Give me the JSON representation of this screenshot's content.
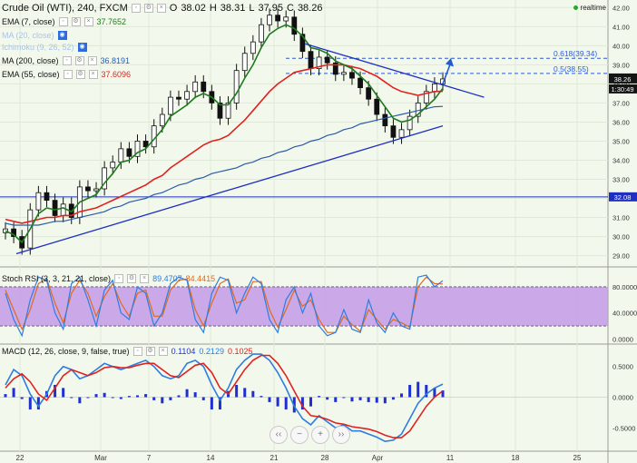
{
  "header": {
    "symbol": "Crude Oil (WTI), 240, FXCM",
    "ohlc": {
      "o_label": "O",
      "o": "38.02",
      "h_label": "H",
      "h": "38.31",
      "l_label": "L",
      "l": "37.95",
      "c_label": "C",
      "c": "38.26"
    },
    "realtime": "realtime"
  },
  "legend": {
    "ema7": {
      "label": "EMA (7, close)",
      "value": "37.7652"
    },
    "ma_faded1": {
      "label": "MA (20, close)"
    },
    "ma_faded2": {
      "label": "Ichimoku (9, 26, 52)"
    },
    "ma200": {
      "label": "MA (200, close)",
      "value": "36.8191"
    },
    "ema55": {
      "label": "EMA (55, close)",
      "value": "37.6096"
    },
    "stoch": {
      "label": "Stoch RSI (3, 3, 21, 21, close)",
      "k": "89.4707",
      "d": "84.4415"
    },
    "macd": {
      "label": "MACD (12, 26, close, 9, false, true)",
      "hist": "0.1104",
      "macd": "0.2129",
      "signal": "0.1025"
    }
  },
  "colors": {
    "price_up": "#1a1a1a",
    "ema7": "#1f7a1f",
    "ema55": "#e0221f",
    "ma200": "#2b5aa8",
    "trend": "#1f2fbf",
    "stoch_band": "#c49be8",
    "macd_line": "#2e7de0",
    "signal_line": "#e0221f",
    "hist": "#1f2fd0"
  },
  "chart_data": [
    {
      "type": "line",
      "panel": "price",
      "title": "Crude Oil (WTI), 240, FXCM",
      "x_ticks": [
        "22",
        "Mar",
        "7",
        "14",
        "21",
        "28",
        "Apr",
        "11",
        "18",
        "25"
      ],
      "y_ticks": [
        "42.00",
        "41.00",
        "40.00",
        "39.00",
        "38.00",
        "37.00",
        "36.00",
        "35.00",
        "34.00",
        "33.00",
        "32.00",
        "31.00",
        "30.00",
        "29.00"
      ],
      "ylim": [
        28.6,
        42.3
      ],
      "current_price": "38.26",
      "countdown": "1:30:49",
      "horizontal_line": {
        "value": 32.08,
        "label": "32.08"
      },
      "fib_levels": [
        {
          "label": "0.618(39.34)",
          "value": 39.34
        },
        {
          "label": "0.5(38.55)",
          "value": 38.55
        }
      ],
      "close": [
        30.4,
        30.0,
        29.4,
        31.4,
        32.3,
        31.9,
        31.1,
        31.7,
        31.0,
        32.6,
        32.4,
        32.5,
        33.6,
        33.9,
        34.6,
        34.2,
        35.0,
        34.7,
        35.8,
        36.4,
        37.3,
        37.2,
        37.6,
        38.1,
        37.6,
        37.0,
        36.2,
        37.0,
        38.7,
        39.6,
        40.2,
        41.1,
        41.6,
        41.3,
        41.5,
        40.6,
        39.7,
        38.8,
        39.4,
        39.1,
        38.5,
        38.6,
        38.3,
        37.8,
        37.2,
        36.4,
        35.8,
        35.2,
        35.6,
        36.3,
        37.0,
        37.6,
        38.0,
        38.26
      ],
      "ema7": [
        30.3,
        30.1,
        29.7,
        30.4,
        31.2,
        31.5,
        31.4,
        31.5,
        31.3,
        31.8,
        32.0,
        32.2,
        32.8,
        33.3,
        33.9,
        34.0,
        34.4,
        34.6,
        35.1,
        35.6,
        36.3,
        36.6,
        36.9,
        37.3,
        37.5,
        37.3,
        36.9,
        36.9,
        37.5,
        38.3,
        39.0,
        39.9,
        40.6,
        40.9,
        41.1,
        40.9,
        40.5,
        39.9,
        39.8,
        39.6,
        39.2,
        39.0,
        38.8,
        38.4,
        38.0,
        37.4,
        36.8,
        36.2,
        36.0,
        36.1,
        36.4,
        36.8,
        37.2,
        37.7652
      ],
      "ema55": [
        30.9,
        30.8,
        30.7,
        30.8,
        30.9,
        31.0,
        31.0,
        31.1,
        31.1,
        31.3,
        31.4,
        31.5,
        31.7,
        31.9,
        32.1,
        32.3,
        32.5,
        32.7,
        33.0,
        33.2,
        33.6,
        33.9,
        34.2,
        34.5,
        34.8,
        35.0,
        35.1,
        35.3,
        35.7,
        36.1,
        36.6,
        37.1,
        37.6,
        38.0,
        38.3,
        38.6,
        38.7,
        38.8,
        38.9,
        39.0,
        39.0,
        39.0,
        38.9,
        38.8,
        38.6,
        38.4,
        38.1,
        37.8,
        37.6,
        37.5,
        37.4,
        37.5,
        37.6,
        37.6096
      ],
      "ma200": [
        30.7,
        30.6,
        30.6,
        30.6,
        30.6,
        30.7,
        30.8,
        30.8,
        30.9,
        31.0,
        31.1,
        31.2,
        31.3,
        31.5,
        31.6,
        31.8,
        31.9,
        32.0,
        32.2,
        32.3,
        32.5,
        32.7,
        32.8,
        33.0,
        33.1,
        33.3,
        33.4,
        33.5,
        33.6,
        33.8,
        33.9,
        34.1,
        34.2,
        34.4,
        34.5,
        34.7,
        34.8,
        35.0,
        35.1,
        35.3,
        35.4,
        35.6,
        35.7,
        35.9,
        36.0,
        36.1,
        36.2,
        36.3,
        36.4,
        36.5,
        36.6,
        36.7,
        36.8,
        36.8191
      ],
      "trendlines": [
        {
          "from": [
            0,
            29.1
          ],
          "to": [
            53,
            35.8
          ]
        },
        {
          "from": [
            35,
            40.1
          ],
          "to": [
            58,
            37.3
          ]
        }
      ]
    },
    {
      "type": "line",
      "panel": "stoch_rsi",
      "y_ticks": [
        "80.0000",
        "40.0000",
        "0.0000"
      ],
      "ylim": [
        -5,
        105
      ],
      "band": [
        20,
        80
      ],
      "k": [
        70,
        30,
        5,
        60,
        95,
        90,
        40,
        15,
        85,
        95,
        60,
        20,
        75,
        90,
        40,
        30,
        80,
        70,
        20,
        40,
        85,
        95,
        90,
        30,
        10,
        70,
        95,
        90,
        40,
        70,
        95,
        85,
        30,
        10,
        60,
        80,
        40,
        70,
        20,
        5,
        10,
        45,
        15,
        10,
        60,
        25,
        10,
        40,
        20,
        15,
        95,
        98,
        80,
        89.47
      ],
      "d": [
        75,
        45,
        15,
        45,
        85,
        92,
        55,
        25,
        70,
        90,
        70,
        35,
        65,
        85,
        55,
        35,
        70,
        75,
        35,
        35,
        75,
        90,
        92,
        45,
        20,
        55,
        85,
        92,
        55,
        60,
        88,
        88,
        45,
        18,
        45,
        75,
        50,
        60,
        30,
        10,
        10,
        35,
        22,
        12,
        45,
        30,
        15,
        30,
        25,
        18,
        80,
        95,
        85,
        84.44
      ]
    },
    {
      "type": "line",
      "panel": "macd",
      "y_ticks": [
        "0.5000",
        "0.0000",
        "-0.5000"
      ],
      "ylim": [
        -0.85,
        0.85
      ],
      "macd": [
        0.2,
        0.45,
        0.35,
        0.05,
        -0.15,
        0.05,
        0.35,
        0.5,
        0.45,
        0.3,
        0.35,
        0.45,
        0.55,
        0.5,
        0.45,
        0.5,
        0.55,
        0.6,
        0.5,
        0.35,
        0.3,
        0.35,
        0.55,
        0.6,
        0.5,
        0.2,
        -0.05,
        0.15,
        0.45,
        0.6,
        0.7,
        0.7,
        0.6,
        0.4,
        0.15,
        -0.15,
        -0.35,
        -0.45,
        -0.3,
        -0.4,
        -0.5,
        -0.45,
        -0.55,
        -0.55,
        -0.6,
        -0.65,
        -0.72,
        -0.7,
        -0.6,
        -0.35,
        -0.1,
        0.05,
        0.15,
        0.2129
      ],
      "signal": [
        0.15,
        0.3,
        0.38,
        0.25,
        0.05,
        -0.05,
        0.15,
        0.35,
        0.45,
        0.4,
        0.35,
        0.4,
        0.48,
        0.5,
        0.48,
        0.48,
        0.52,
        0.55,
        0.55,
        0.45,
        0.35,
        0.32,
        0.42,
        0.52,
        0.55,
        0.4,
        0.15,
        0.05,
        0.25,
        0.45,
        0.6,
        0.68,
        0.68,
        0.55,
        0.35,
        0.1,
        -0.15,
        -0.3,
        -0.32,
        -0.36,
        -0.42,
        -0.44,
        -0.48,
        -0.5,
        -0.52,
        -0.56,
        -0.62,
        -0.66,
        -0.66,
        -0.55,
        -0.35,
        -0.15,
        0.0,
        0.1025
      ],
      "hist": [
        0.05,
        0.15,
        -0.03,
        -0.2,
        -0.2,
        0.1,
        0.2,
        0.15,
        0.0,
        -0.1,
        0.0,
        0.05,
        0.07,
        0.0,
        -0.03,
        0.02,
        0.03,
        0.05,
        -0.05,
        -0.1,
        -0.05,
        0.03,
        0.13,
        0.08,
        -0.05,
        -0.2,
        -0.2,
        0.1,
        0.2,
        0.15,
        0.1,
        0.02,
        -0.08,
        -0.15,
        -0.2,
        -0.25,
        -0.2,
        -0.15,
        0.02,
        -0.04,
        -0.08,
        -0.01,
        -0.07,
        -0.05,
        -0.08,
        -0.09,
        -0.1,
        -0.04,
        0.06,
        0.2,
        0.25,
        0.2,
        0.15,
        0.1104
      ]
    }
  ]
}
